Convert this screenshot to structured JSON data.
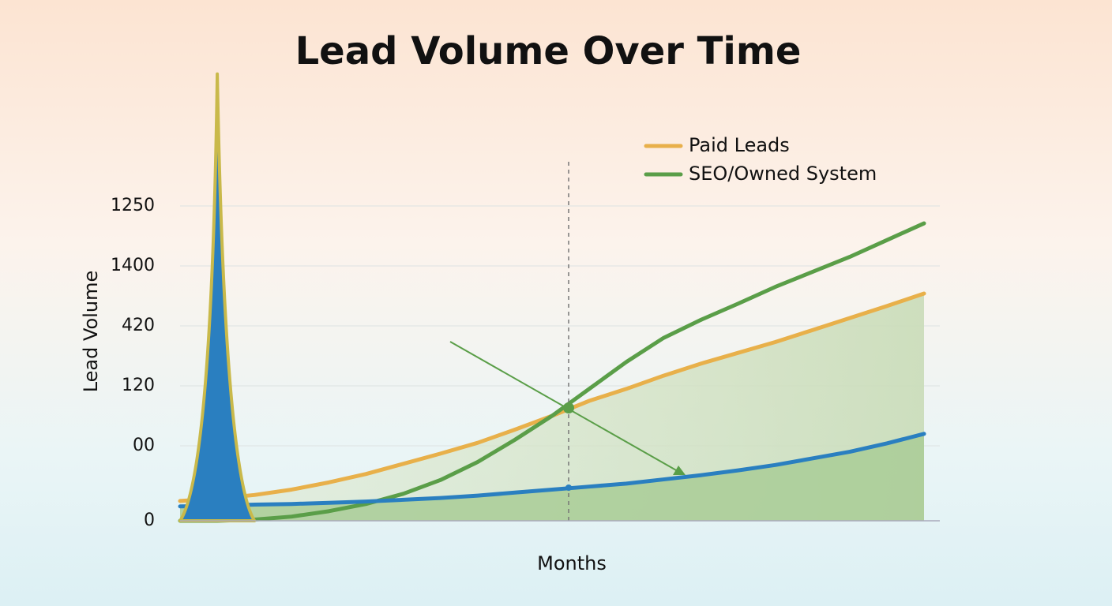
{
  "chart_data": {
    "type": "line",
    "title": "Lead Volume Over Time",
    "x_label": "Months",
    "y_label": "Lead Volume",
    "x": [
      0,
      1,
      2,
      3,
      4,
      5,
      6,
      7,
      8,
      9,
      10,
      11,
      12,
      13,
      14,
      15,
      16,
      17,
      18,
      19,
      20
    ],
    "xlim": [
      0,
      20
    ],
    "ylim": [
      0,
      7.5
    ],
    "yticks": [
      0,
      {
        "value": 1.25,
        "label": "00"
      },
      {
        "value": 2.25,
        "label": "120"
      },
      {
        "value": 3.25,
        "label": "420"
      },
      {
        "value": 4.25,
        "label": "1400"
      },
      {
        "value": 5.25,
        "label": "1250"
      }
    ],
    "grid": true,
    "legend": "upper right",
    "series": [
      {
        "name": "Paid Leads",
        "color": "#e8b04a",
        "values": [
          0.33,
          0.37,
          0.43,
          0.52,
          0.64,
          0.78,
          0.95,
          1.12,
          1.3,
          1.52,
          1.75,
          2.0,
          2.2,
          2.42,
          2.62,
          2.8,
          2.98,
          3.18,
          3.38,
          3.58,
          3.79
        ]
      },
      {
        "name": "SEO/Owned System",
        "color": "#5a9e48",
        "values": [
          0,
          0,
          0.02,
          0.07,
          0.16,
          0.28,
          0.45,
          0.68,
          0.98,
          1.35,
          1.75,
          2.2,
          2.65,
          3.05,
          3.35,
          3.62,
          3.9,
          4.15,
          4.4,
          4.68,
          4.96
        ]
      },
      {
        "color": "#2a7fc0",
        "values": [
          0.24,
          0.25,
          0.27,
          0.28,
          0.3,
          0.32,
          0.35,
          0.38,
          0.42,
          0.47,
          0.52,
          0.57,
          0.62,
          0.69,
          0.76,
          0.84,
          0.93,
          1.04,
          1.15,
          1.29,
          1.45
        ]
      },
      {
        "color": "#2a7fc0",
        "outline": "#c9b94a",
        "fill": true,
        "x": [
          0,
          1,
          2
        ],
        "values": [
          0,
          7.45,
          0
        ]
      }
    ]
  }
}
